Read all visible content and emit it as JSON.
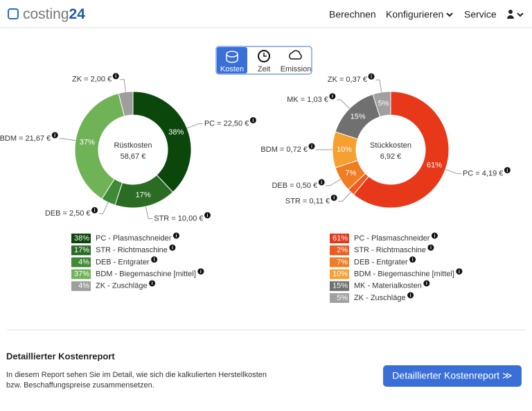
{
  "header": {
    "logo": "costing",
    "logo_bold": "24",
    "nav": [
      "Berechnen",
      "Konfigurieren",
      "Service"
    ]
  },
  "tabs": [
    "Kosten",
    "Zeit",
    "Emission"
  ],
  "charts": [
    {
      "type": "donut",
      "center_label": "Rüstkosten",
      "center_value": "58,67 €",
      "callouts": [
        "PC = 22,50 €",
        "STR = 10,00 €",
        "DEB = 2,50 €",
        "BDM = 21,67 €",
        "ZK = 2,00 €"
      ],
      "legend": [
        "PC - Plasmaschneider",
        "STR - Richtmaschine",
        "DEB - Entgrater",
        "BDM - Biegemaschine [mittel]",
        "ZK - Zuschläge"
      ],
      "values": [
        38,
        17,
        4,
        37,
        4
      ],
      "value_labels": [
        "38%",
        "17%",
        "4%",
        "37%",
        "4%"
      ],
      "colors": [
        "#0b470b",
        "#2b6c25",
        "#3e8a35",
        "#70b357",
        "#9e9e9e"
      ]
    },
    {
      "type": "donut",
      "center_label": "Stückkosten",
      "center_value": "6,92 €",
      "callouts": [
        "PC = 4,19 €",
        "STR = 0,11 €",
        "DEB = 0,50 €",
        "BDM = 0,72 €",
        "MK = 1,03 €",
        "ZK = 0,37 €"
      ],
      "legend": [
        "PC - Plasmaschneider",
        "STR - Richtmaschine",
        "DEB - Entgrater",
        "BDM - Biegemaschine [mittel]",
        "MK - Materialkosten",
        "ZK - Zuschläge"
      ],
      "values": [
        61,
        2,
        7,
        10,
        15,
        5
      ],
      "value_labels": [
        "61%",
        "2%",
        "7%",
        "10%",
        "15%",
        "5%"
      ],
      "colors": [
        "#e8381a",
        "#ee5a20",
        "#f07d22",
        "#f5a030",
        "#707070",
        "#a0a0a0"
      ]
    }
  ],
  "report": {
    "title": "Detaillierter Kostenreport",
    "text": [
      "In diesem Report sehen Sie im Detail, wie sich die kalkulierten Herstellkosten",
      "bzw. Beschaffungspreise zusammensetzen."
    ],
    "button": "Detaillierter Kostenreport ≫"
  }
}
